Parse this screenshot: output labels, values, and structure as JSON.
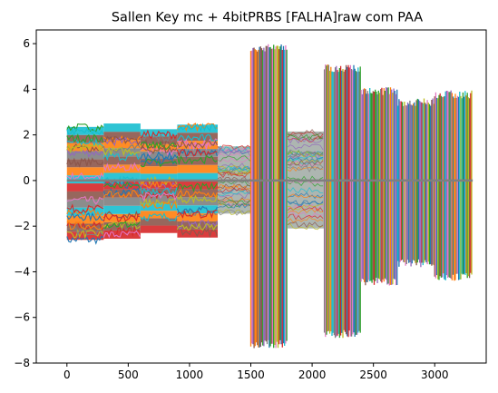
{
  "chart_data": {
    "type": "line",
    "title": "Sallen Key mc + 4bitPRBS [FALHA]raw com PAA",
    "xlabel": "",
    "ylabel": "",
    "xlim": [
      -250,
      3420
    ],
    "ylim": [
      -8,
      6.6
    ],
    "x_ticks": [
      0,
      500,
      1000,
      1500,
      2000,
      2500,
      3000
    ],
    "x_tick_labels": [
      "0",
      "500",
      "1000",
      "1500",
      "2000",
      "2500",
      "3000"
    ],
    "y_ticks": [
      -8,
      -6,
      -4,
      -2,
      0,
      2,
      4,
      6
    ],
    "y_tick_labels": [
      "−8",
      "−6",
      "−4",
      "−2",
      "0",
      "2",
      "4",
      "6"
    ],
    "grid": false,
    "legend": "none",
    "palette": [
      "#1f77b4",
      "#ff7f0e",
      "#2ca02c",
      "#d62728",
      "#9467bd",
      "#8c564b",
      "#e377c2",
      "#7f7f7f",
      "#bcbd22",
      "#17becf"
    ],
    "segments": [
      {
        "x": [
          0,
          300
        ],
        "envelope": [
          -2.6,
          2.35
        ],
        "style": "blocky"
      },
      {
        "x": [
          300,
          600
        ],
        "envelope": [
          -2.55,
          2.5
        ],
        "style": "blocky"
      },
      {
        "x": [
          600,
          900
        ],
        "envelope": [
          -2.3,
          2.25
        ],
        "style": "blocky"
      },
      {
        "x": [
          900,
          1230
        ],
        "envelope": [
          -2.5,
          2.45
        ],
        "style": "blocky"
      },
      {
        "x": [
          1230,
          1500
        ],
        "envelope": [
          -1.45,
          1.5
        ],
        "style": "dense"
      },
      {
        "x": [
          1500,
          1800
        ],
        "envelope": [
          -7.35,
          6.0
        ],
        "style": "striped"
      },
      {
        "x": [
          1800,
          2100
        ],
        "envelope": [
          -2.1,
          2.15
        ],
        "style": "dense"
      },
      {
        "x": [
          2100,
          2400
        ],
        "envelope": [
          -6.9,
          5.1
        ],
        "style": "striped"
      },
      {
        "x": [
          2400,
          2700
        ],
        "envelope": [
          -4.6,
          4.1
        ],
        "style": "striped"
      },
      {
        "x": [
          2700,
          3000
        ],
        "envelope": [
          -3.8,
          3.6
        ],
        "style": "striped"
      },
      {
        "x": [
          3000,
          3310
        ],
        "envelope": [
          -4.4,
          3.95
        ],
        "style": "striped"
      }
    ],
    "center_line": {
      "x": [
        0,
        3310
      ],
      "y": 0,
      "color": "#7f7f7f"
    }
  }
}
